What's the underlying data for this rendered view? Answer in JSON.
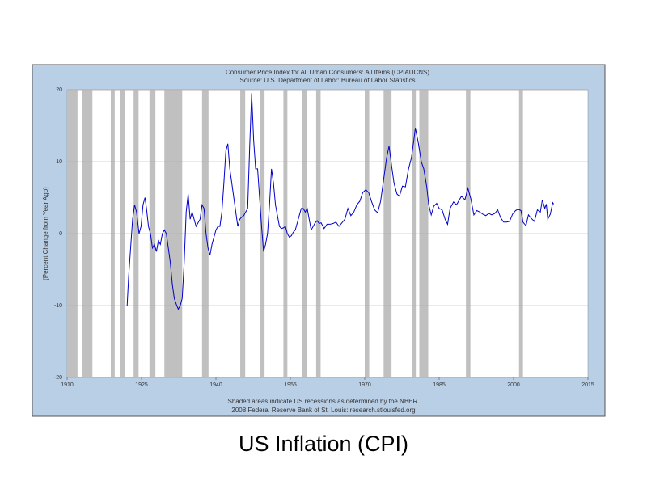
{
  "chart_data": {
    "type": "line",
    "title": "Consumer Price Index for All Urban Consumers: All Items (CPIAUCNS)",
    "subtitle": "Source: U.S. Department of Labor: Bureau of Labor Statistics",
    "y_label": "(Percent Change from Year Ago)",
    "notes": [
      "Shaded areas indicate US recessions as determined by the NBER.",
      "2008 Federal Reserve Bank of St. Louis: research.stlouisfed.org"
    ],
    "caption": "US Inflation (CPI)",
    "color": "#0000cc",
    "recession_color": "#c0c0c0",
    "grid": true,
    "xlim": [
      1910,
      2015
    ],
    "xticks": [
      1910,
      1925,
      1940,
      1955,
      1970,
      1985,
      2000,
      2015
    ],
    "ylim": [
      -20,
      20
    ],
    "yticks": [
      -20,
      -10,
      0,
      10,
      20
    ],
    "recessions": [
      [
        1910.0,
        1912.1
      ],
      [
        1913.1,
        1915.1
      ],
      [
        1918.8,
        1919.6
      ],
      [
        1920.6,
        1921.7
      ],
      [
        1923.4,
        1924.4
      ],
      [
        1926.6,
        1927.8
      ],
      [
        1929.6,
        1933.2
      ],
      [
        1937.2,
        1938.5
      ],
      [
        1944.9,
        1945.9
      ],
      [
        1948.9,
        1949.8
      ],
      [
        1953.6,
        1954.4
      ],
      [
        1957.3,
        1958.3
      ],
      [
        1960.2,
        1961.1
      ],
      [
        1970.0,
        1970.9
      ],
      [
        1973.8,
        1975.4
      ],
      [
        1979.6,
        1980.3
      ],
      [
        1981.0,
        1982.8
      ],
      [
        1990.4,
        1991.3
      ],
      [
        2001.1,
        2001.9
      ]
    ],
    "x": [
      1922.1,
      1922.4,
      1922.8,
      1923.2,
      1923.6,
      1924.0,
      1924.5,
      1924.9,
      1925.3,
      1925.7,
      1926.0,
      1926.4,
      1926.8,
      1927.2,
      1927.6,
      1928.0,
      1928.4,
      1928.8,
      1929.2,
      1929.6,
      1930.0,
      1930.4,
      1930.8,
      1931.2,
      1931.6,
      1932.0,
      1932.4,
      1932.8,
      1933.2,
      1933.6,
      1934.0,
      1934.4,
      1934.8,
      1935.2,
      1935.6,
      1936.0,
      1936.4,
      1936.8,
      1937.2,
      1937.6,
      1938.0,
      1938.4,
      1938.8,
      1939.2,
      1939.6,
      1940.0,
      1940.4,
      1940.8,
      1941.2,
      1941.6,
      1942.0,
      1942.4,
      1942.8,
      1943.2,
      1943.6,
      1944.0,
      1944.4,
      1944.8,
      1945.2,
      1945.6,
      1946.0,
      1946.4,
      1946.8,
      1947.2,
      1947.6,
      1948.0,
      1948.4,
      1948.8,
      1949.2,
      1949.6,
      1950.0,
      1950.4,
      1950.8,
      1951.2,
      1951.6,
      1952.0,
      1952.4,
      1952.8,
      1953.2,
      1953.6,
      1954.0,
      1954.4,
      1954.8,
      1955.2,
      1955.6,
      1956.0,
      1956.4,
      1956.8,
      1957.2,
      1957.6,
      1958.0,
      1958.4,
      1958.8,
      1959.2,
      1959.6,
      1960.0,
      1960.4,
      1960.8,
      1961.2,
      1961.8,
      1962.4,
      1963.0,
      1963.6,
      1964.2,
      1964.8,
      1965.4,
      1966.0,
      1966.6,
      1967.2,
      1967.8,
      1968.4,
      1969.0,
      1969.6,
      1970.2,
      1970.8,
      1971.4,
      1972.0,
      1972.6,
      1973.2,
      1973.8,
      1974.4,
      1974.9,
      1975.4,
      1975.9,
      1976.5,
      1977.0,
      1977.6,
      1978.2,
      1978.8,
      1979.4,
      1979.9,
      1980.2,
      1980.8,
      1981.4,
      1981.9,
      1982.5,
      1982.9,
      1983.4,
      1983.9,
      1984.5,
      1985.0,
      1985.6,
      1986.2,
      1986.7,
      1987.2,
      1987.9,
      1988.5,
      1989.0,
      1989.5,
      1990.2,
      1990.8,
      1991.4,
      1992.0,
      1992.6,
      1993.2,
      1993.8,
      1994.4,
      1995.0,
      1995.6,
      1996.2,
      1996.8,
      1997.4,
      1998.0,
      1998.6,
      1999.2,
      1999.8,
      2000.4,
      2000.9,
      2001.5,
      2001.9,
      2002.5,
      2003.0,
      2003.6,
      2004.2,
      2004.8,
      2005.4,
      2005.8,
      2006.3,
      2006.6,
      2006.9,
      2007.4,
      2007.9,
      2008.1
    ],
    "values": [
      -10,
      -6,
      -2,
      2,
      4,
      3,
      0,
      1,
      4,
      5,
      3.5,
      1,
      0,
      -2,
      -1.5,
      -2.5,
      -1,
      -1.5,
      0,
      0.5,
      0,
      -2,
      -4,
      -7,
      -9,
      -9.8,
      -10.5,
      -10,
      -9,
      -4,
      3,
      5.5,
      2,
      3,
      2,
      1,
      1.5,
      2,
      4,
      3.5,
      0,
      -2,
      -3,
      -1.5,
      -0.5,
      0.5,
      1,
      1,
      3,
      7,
      11.5,
      12.5,
      9,
      7,
      5,
      3,
      1,
      2,
      2.3,
      2.5,
      3,
      3.5,
      12,
      19.5,
      13,
      9,
      9,
      5,
      1,
      -2.5,
      -1.5,
      0,
      4,
      9,
      7,
      4,
      2.5,
      1,
      0.7,
      0.8,
      1,
      0,
      -0.5,
      -0.3,
      0.2,
      0.5,
      1.5,
      2.5,
      3.5,
      3.5,
      3,
      3.5,
      2,
      0.5,
      1,
      1.5,
      1.8,
      1.4,
      1.5,
      0.7,
      1.3,
      1.3,
      1.4,
      1.6,
      1,
      1.5,
      2,
      3.5,
      2.5,
      3,
      4,
      4.5,
      5.7,
      6.1,
      5.7,
      4.4,
      3.3,
      2.9,
      4.5,
      7.5,
      10.5,
      12.2,
      9.5,
      7,
      5.5,
      5.2,
      6.6,
      6.5,
      8.9,
      10.5,
      13,
      14.7,
      12.6,
      10,
      9,
      6.5,
      4,
      2.6,
      3.8,
      4.2,
      3.5,
      3.3,
      2,
      1.3,
      3.5,
      4.4,
      4,
      4.6,
      5.2,
      4.7,
      6.3,
      4.8,
      2.6,
      3.2,
      3,
      2.7,
      2.5,
      2.8,
      2.6,
      2.8,
      3.3,
      2.2,
      1.6,
      1.6,
      1.7,
      2.7,
      3.2,
      3.4,
      3.2,
      1.6,
      1.1,
      2.6,
      2.1,
      1.7,
      3.3,
      3,
      4.7,
      3.5,
      4.1,
      2,
      2.7,
      4.3,
      4.1
    ]
  }
}
